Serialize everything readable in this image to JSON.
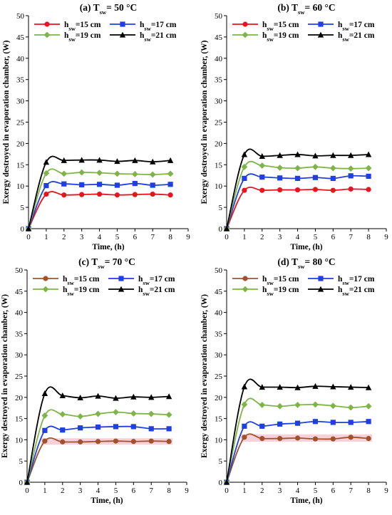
{
  "colors": {
    "h15_panels_ab": "#e8141e",
    "h15_panels_cd": "#a0522d",
    "h17": "#1f3fe0",
    "h19": "#7fb548",
    "h21": "#000000",
    "highlight": "#f6c9d2"
  },
  "chart_data": [
    {
      "type": "line",
      "title": {
        "prefix": "(a) T",
        "sub": "sw",
        "suffix": "= 50 °C"
      },
      "xlabel": "Time, (h)",
      "ylabel": "Exergy destroyed in evaporation chamber, (W)",
      "xlim": [
        0,
        9
      ],
      "ylim": [
        0,
        50
      ],
      "xticks": [
        "0",
        "1",
        "2",
        "3",
        "4",
        "5",
        "6",
        "7",
        "8",
        "9"
      ],
      "yticks": [
        "0",
        "5",
        "10",
        "15",
        "20",
        "25",
        "30",
        "35",
        "40",
        "45",
        "50"
      ],
      "legend_position": "top",
      "x": [
        0,
        1,
        2,
        3,
        4,
        5,
        6,
        7,
        8
      ],
      "series": [
        {
          "name": {
            "prefix": "h",
            "sub": "sw",
            "suffix": "=15 cm"
          },
          "marker": "circle",
          "color_key": "h15_panels_ab",
          "values": [
            0,
            8.1,
            7.9,
            8.0,
            8.1,
            7.9,
            8.0,
            8.1,
            7.9
          ]
        },
        {
          "name": {
            "prefix": "h",
            "sub": "sw",
            "suffix": "=17 cm"
          },
          "marker": "square",
          "color_key": "h17",
          "values": [
            0,
            10.1,
            10.5,
            10.3,
            10.4,
            10.2,
            10.6,
            10.2,
            10.4
          ]
        },
        {
          "name": {
            "prefix": "h",
            "sub": "sw",
            "suffix": "=19 cm"
          },
          "marker": "diamond",
          "color_key": "h19",
          "values": [
            0,
            13.0,
            12.9,
            13.2,
            13.1,
            12.9,
            12.8,
            12.7,
            12.9
          ]
        },
        {
          "name": {
            "prefix": "h",
            "sub": "sw",
            "suffix": "=21 cm"
          },
          "marker": "triangle",
          "color_key": "h21",
          "values": [
            0,
            15.6,
            16.0,
            16.1,
            16.1,
            15.8,
            16.0,
            15.7,
            16.0
          ]
        }
      ]
    },
    {
      "type": "line",
      "title": {
        "prefix": "(b) T",
        "sub": "sw",
        "suffix": "= 60 °C"
      },
      "xlabel": "Time, (h)",
      "ylabel": "Exergy destroyed in evaporation chamber, (W)",
      "xlim": [
        0,
        9
      ],
      "ylim": [
        0,
        50
      ],
      "xticks": [
        "0",
        "1",
        "2",
        "3",
        "4",
        "5",
        "6",
        "7",
        "8",
        "9"
      ],
      "yticks": [
        "0",
        "5",
        "10",
        "15",
        "20",
        "25",
        "30",
        "35",
        "40",
        "45",
        "50"
      ],
      "legend_position": "top",
      "x": [
        0,
        1,
        2,
        3,
        4,
        5,
        6,
        7,
        8
      ],
      "series": [
        {
          "name": {
            "prefix": "h",
            "sub": "sw",
            "suffix": "=15 cm"
          },
          "marker": "circle",
          "color_key": "h15_panels_ab",
          "values": [
            0,
            9.0,
            9.0,
            9.1,
            9.1,
            9.2,
            9.0,
            9.3,
            9.2
          ]
        },
        {
          "name": {
            "prefix": "h",
            "sub": "sw",
            "suffix": "=17 cm"
          },
          "marker": "square",
          "color_key": "h17",
          "values": [
            0,
            11.8,
            12.1,
            11.9,
            11.8,
            12.0,
            11.8,
            12.4,
            12.3
          ]
        },
        {
          "name": {
            "prefix": "h",
            "sub": "sw",
            "suffix": "=19 cm"
          },
          "marker": "diamond",
          "color_key": "h19",
          "values": [
            0,
            14.5,
            14.8,
            14.3,
            14.2,
            14.5,
            14.2,
            14.1,
            14.2
          ]
        },
        {
          "name": {
            "prefix": "h",
            "sub": "sw",
            "suffix": "=21 cm"
          },
          "marker": "triangle",
          "color_key": "h21",
          "values": [
            0,
            17.4,
            17.0,
            17.2,
            17.4,
            17.1,
            17.2,
            17.2,
            17.4
          ]
        }
      ]
    },
    {
      "type": "line",
      "title": {
        "prefix": "(c) T",
        "sub": "sw",
        "suffix": "= 70 °C"
      },
      "xlabel": "Time, (h)",
      "ylabel": "Exergy destroyed in evaporation chamber, (W)",
      "xlim": [
        0,
        9
      ],
      "ylim": [
        0,
        50
      ],
      "xticks": [
        "0",
        "1",
        "2",
        "3",
        "4",
        "5",
        "6",
        "7",
        "8",
        "9"
      ],
      "yticks": [
        "0",
        "5",
        "10",
        "15",
        "20",
        "25",
        "30",
        "35",
        "40",
        "45",
        "50"
      ],
      "legend_position": "top",
      "x": [
        0,
        1,
        2,
        3,
        4,
        5,
        6,
        7,
        8
      ],
      "series": [
        {
          "name": {
            "prefix": "h",
            "sub": "sw",
            "suffix": "=15 cm"
          },
          "marker": "circle",
          "color_key": "h15_panels_cd",
          "highlight": true,
          "values": [
            0,
            9.7,
            9.5,
            9.5,
            9.6,
            9.7,
            9.6,
            9.7,
            9.6
          ]
        },
        {
          "name": {
            "prefix": "h",
            "sub": "sw",
            "suffix": "=17 cm"
          },
          "marker": "square",
          "color_key": "h17",
          "values": [
            0,
            12.2,
            12.3,
            12.8,
            13.0,
            13.1,
            13.1,
            12.6,
            12.6
          ]
        },
        {
          "name": {
            "prefix": "h",
            "sub": "sw",
            "suffix": "=19 cm"
          },
          "marker": "diamond",
          "color_key": "h19",
          "values": [
            0,
            15.7,
            16.0,
            15.5,
            16.1,
            16.5,
            16.2,
            16.1,
            15.9
          ]
        },
        {
          "name": {
            "prefix": "h",
            "sub": "sw",
            "suffix": "=21 cm"
          },
          "marker": "triangle",
          "color_key": "h21",
          "values": [
            0,
            20.9,
            20.4,
            19.9,
            20.3,
            19.8,
            20.1,
            20.0,
            20.2
          ]
        }
      ]
    },
    {
      "type": "line",
      "title": {
        "prefix": "(d) T",
        "sub": "sw",
        "suffix": "= 80 °C"
      },
      "xlabel": "Time, (h)",
      "ylabel": "Exergy destroyed in evaporation chamber, (W)",
      "xlim": [
        0,
        9
      ],
      "ylim": [
        0,
        50
      ],
      "xticks": [
        "0",
        "1",
        "2",
        "3",
        "4",
        "5",
        "6",
        "7",
        "8",
        "9"
      ],
      "yticks": [
        "0",
        "5",
        "10",
        "15",
        "20",
        "25",
        "30",
        "35",
        "40",
        "45",
        "50"
      ],
      "legend_position": "top",
      "x": [
        0,
        1,
        2,
        3,
        4,
        5,
        6,
        7,
        8
      ],
      "series": [
        {
          "name": {
            "prefix": "h",
            "sub": "sw",
            "suffix": "=15 cm"
          },
          "marker": "circle",
          "color_key": "h15_panels_cd",
          "highlight": true,
          "values": [
            0,
            10.6,
            10.3,
            10.3,
            10.4,
            10.2,
            10.2,
            10.6,
            10.3
          ]
        },
        {
          "name": {
            "prefix": "h",
            "sub": "sw",
            "suffix": "=17 cm"
          },
          "marker": "square",
          "color_key": "h17",
          "values": [
            0,
            13.2,
            13.2,
            13.7,
            13.9,
            14.3,
            14.1,
            14.1,
            14.3
          ]
        },
        {
          "name": {
            "prefix": "h",
            "sub": "sw",
            "suffix": "=19 cm"
          },
          "marker": "diamond",
          "color_key": "h19",
          "values": [
            0,
            18.3,
            18.2,
            17.9,
            18.2,
            18.3,
            18.0,
            17.6,
            17.9
          ]
        },
        {
          "name": {
            "prefix": "h",
            "sub": "sw",
            "suffix": "=21 cm"
          },
          "marker": "triangle",
          "color_key": "h21",
          "values": [
            0,
            22.5,
            22.4,
            22.4,
            22.3,
            22.6,
            22.5,
            22.4,
            22.3
          ]
        }
      ]
    }
  ]
}
